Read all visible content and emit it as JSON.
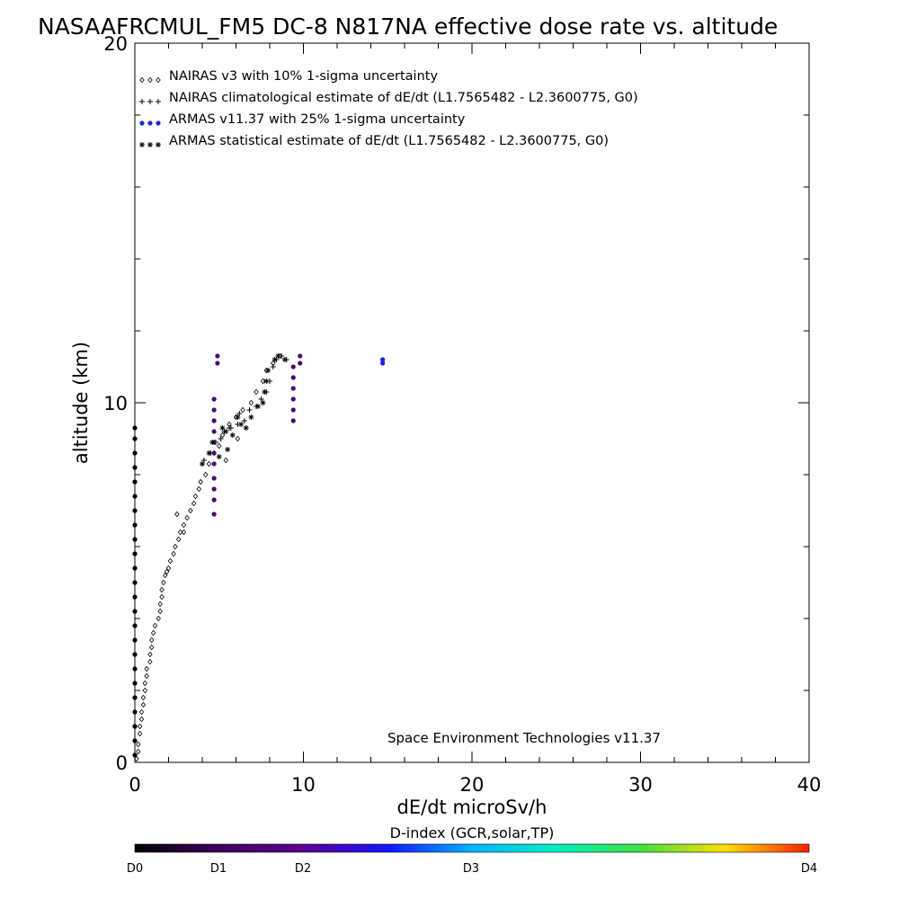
{
  "chart_data": {
    "type": "scatter",
    "title": "NASAAFRCMUL_FM5 DC-8   N817NA effective dose rate vs. altitude",
    "xlabel": "dE/dt microSv/h",
    "ylabel": "altitude (km)",
    "xlim": [
      0,
      40
    ],
    "ylim": [
      0,
      20
    ],
    "x_ticks": [
      "0",
      "10",
      "20",
      "30",
      "40"
    ],
    "y_ticks": [
      "0",
      "10",
      "20"
    ],
    "legend_position": "top-left",
    "credit": "Space Environment Technologies v11.37",
    "series": [
      {
        "name": "NAIRAS v3 with 10% 1-sigma uncertainty",
        "marker": "diamond",
        "color": "#000000",
        "points": [
          [
            0.1,
            0.1
          ],
          [
            0.2,
            0.3
          ],
          [
            0.2,
            0.5
          ],
          [
            0.3,
            0.8
          ],
          [
            0.3,
            1.0
          ],
          [
            0.4,
            1.2
          ],
          [
            0.4,
            1.4
          ],
          [
            0.5,
            1.6
          ],
          [
            0.5,
            1.8
          ],
          [
            0.6,
            2.0
          ],
          [
            0.6,
            2.2
          ],
          [
            0.7,
            2.4
          ],
          [
            0.7,
            2.6
          ],
          [
            0.9,
            2.8
          ],
          [
            0.9,
            3.0
          ],
          [
            1.0,
            3.2
          ],
          [
            1.0,
            3.4
          ],
          [
            1.1,
            3.6
          ],
          [
            1.2,
            3.8
          ],
          [
            1.4,
            4.0
          ],
          [
            1.5,
            4.2
          ],
          [
            1.5,
            4.4
          ],
          [
            1.6,
            4.6
          ],
          [
            1.6,
            4.8
          ],
          [
            1.7,
            5.0
          ],
          [
            1.8,
            5.2
          ],
          [
            2.0,
            5.4
          ],
          [
            2.1,
            5.6
          ],
          [
            2.3,
            5.8
          ],
          [
            2.4,
            6.0
          ],
          [
            2.6,
            6.2
          ],
          [
            2.7,
            6.4
          ],
          [
            2.9,
            6.6
          ],
          [
            3.1,
            6.8
          ],
          [
            3.3,
            7.0
          ],
          [
            3.5,
            7.2
          ],
          [
            3.6,
            7.4
          ],
          [
            3.8,
            7.6
          ],
          [
            3.9,
            7.8
          ],
          [
            4.2,
            8.0
          ],
          [
            4.4,
            8.3
          ],
          [
            4.7,
            8.6
          ],
          [
            5.0,
            8.8
          ],
          [
            5.2,
            9.1
          ],
          [
            5.6,
            9.4
          ],
          [
            6.0,
            9.6
          ],
          [
            6.4,
            9.8
          ],
          [
            6.9,
            10.0
          ],
          [
            7.2,
            10.3
          ],
          [
            7.6,
            10.6
          ],
          [
            7.8,
            10.9
          ],
          [
            8.2,
            11.1
          ],
          [
            8.6,
            11.3
          ],
          [
            5.4,
            8.4
          ],
          [
            6.1,
            9.0
          ],
          [
            2.5,
            6.9
          ],
          [
            2.9,
            6.4
          ],
          [
            1.9,
            5.3
          ]
        ]
      },
      {
        "name": "NAIRAS climatological estimate of dE/dt (L1.7565482 - L2.3600775, G0)",
        "marker": "plus",
        "color": "#000000",
        "points": [
          [
            4.1,
            8.4
          ],
          [
            4.5,
            8.6
          ],
          [
            4.8,
            8.9
          ],
          [
            5.1,
            9.0
          ],
          [
            5.3,
            9.2
          ],
          [
            5.7,
            9.3
          ],
          [
            6.1,
            9.4
          ],
          [
            6.5,
            9.5
          ],
          [
            6.8,
            9.8
          ],
          [
            7.2,
            9.9
          ],
          [
            7.5,
            10.1
          ],
          [
            7.8,
            10.3
          ],
          [
            8.0,
            10.6
          ],
          [
            8.2,
            11.0
          ],
          [
            8.4,
            11.2
          ],
          [
            8.7,
            11.3
          ],
          [
            9.0,
            11.2
          ],
          [
            6.2,
            9.7
          ],
          [
            5.6,
            9.3
          ]
        ]
      },
      {
        "name": "ARMAS v11.37 with 25% 1-sigma uncertainty",
        "marker": "dot",
        "color": "#1a2cc8",
        "points": [
          [
            0.0,
            0.2
          ],
          [
            0.0,
            0.6
          ],
          [
            0.0,
            1.0
          ],
          [
            0.0,
            1.4
          ],
          [
            0.0,
            1.8
          ],
          [
            0.0,
            2.2
          ],
          [
            0.0,
            2.6
          ],
          [
            0.0,
            3.0
          ],
          [
            0.0,
            3.4
          ],
          [
            0.0,
            3.8
          ],
          [
            0.0,
            4.2
          ],
          [
            0.0,
            4.6
          ],
          [
            0.0,
            5.0
          ],
          [
            0.0,
            5.4
          ],
          [
            0.0,
            5.8
          ],
          [
            0.0,
            6.2
          ],
          [
            0.0,
            6.6
          ],
          [
            0.0,
            7.0
          ],
          [
            0.0,
            7.4
          ],
          [
            0.0,
            7.8
          ],
          [
            0.0,
            8.2
          ],
          [
            0.0,
            8.6
          ],
          [
            0.0,
            9.0
          ],
          [
            0.0,
            9.3
          ],
          [
            4.7,
            6.9
          ],
          [
            4.7,
            7.3
          ],
          [
            4.7,
            7.6
          ],
          [
            4.7,
            7.9
          ],
          [
            4.7,
            8.3
          ],
          [
            4.7,
            8.6
          ],
          [
            4.7,
            8.9
          ],
          [
            4.7,
            9.2
          ],
          [
            4.7,
            9.5
          ],
          [
            4.7,
            9.8
          ],
          [
            4.7,
            10.1
          ],
          [
            4.9,
            11.1
          ],
          [
            4.9,
            11.3
          ],
          [
            9.4,
            9.5
          ],
          [
            9.4,
            9.8
          ],
          [
            9.4,
            10.1
          ],
          [
            9.4,
            10.4
          ],
          [
            9.4,
            10.7
          ],
          [
            9.4,
            11.0
          ],
          [
            9.8,
            11.1
          ],
          [
            9.8,
            11.3
          ],
          [
            14.7,
            11.1
          ],
          [
            14.7,
            11.2
          ]
        ]
      },
      {
        "name": "ARMAS statistical estimate of dE/dt (L1.7565482 - L2.3600775, G0)",
        "marker": "asterisk",
        "color": "#000000",
        "points": [
          [
            4.0,
            8.3
          ],
          [
            4.4,
            8.6
          ],
          [
            5.0,
            8.5
          ],
          [
            5.5,
            8.7
          ],
          [
            4.6,
            8.9
          ],
          [
            5.2,
            9.3
          ],
          [
            5.8,
            9.1
          ],
          [
            6.3,
            9.4
          ],
          [
            6.6,
            9.3
          ],
          [
            6.9,
            9.6
          ],
          [
            7.3,
            9.9
          ],
          [
            7.6,
            10.0
          ],
          [
            7.7,
            10.3
          ],
          [
            7.8,
            10.6
          ],
          [
            7.9,
            10.9
          ],
          [
            8.3,
            11.2
          ],
          [
            8.5,
            11.3
          ],
          [
            8.9,
            11.2
          ],
          [
            6.1,
            9.6
          ],
          [
            5.4,
            9.2
          ]
        ]
      }
    ],
    "colorbar": {
      "title": "D-index (GCR,solar,TP)",
      "labels": [
        {
          "text": "D0",
          "value": 0
        },
        {
          "text": "D1",
          "value": 1
        },
        {
          "text": "D2",
          "value": 2
        },
        {
          "text": "D3",
          "value": 3
        },
        {
          "text": "D4",
          "value": 4
        }
      ],
      "colors": [
        "#000000",
        "#5a0078",
        "#1414ff",
        "#00c8ff",
        "#00e060",
        "#ffe600",
        "#ff1e00"
      ]
    }
  }
}
